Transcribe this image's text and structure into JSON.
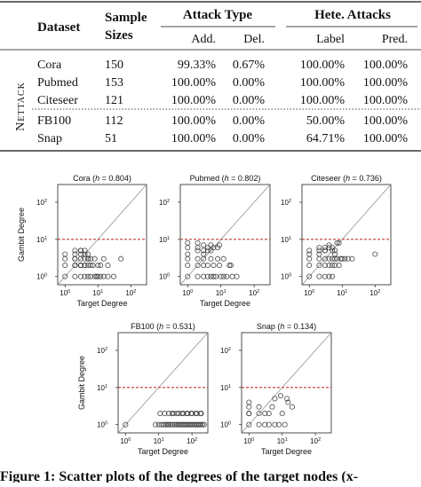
{
  "table": {
    "col_dataset": "Dataset",
    "col_sample_line1": "Sample",
    "col_sample_line2": "Sizes",
    "group_attack": "Attack Type",
    "group_hete": "Hete. Attacks",
    "sub_add": "Add.",
    "sub_del": "Del.",
    "sub_label": "Label",
    "sub_pred": "Pred.",
    "side_label": "Nettack",
    "rows": [
      {
        "dataset": "Cora",
        "size": "150",
        "add": "99.33%",
        "del": "0.67%",
        "label": "100.00%",
        "pred": "100.00%"
      },
      {
        "dataset": "Pubmed",
        "size": "153",
        "add": "100.00%",
        "del": "0.00%",
        "label": "100.00%",
        "pred": "100.00%"
      },
      {
        "dataset": "Citeseer",
        "size": "121",
        "add": "100.00%",
        "del": "0.00%",
        "label": "100.00%",
        "pred": "100.00%"
      },
      {
        "dataset": "FB100",
        "size": "112",
        "add": "100.00%",
        "del": "0.00%",
        "label": "50.00%",
        "pred": "100.00%"
      },
      {
        "dataset": "Snap",
        "size": "51",
        "add": "100.00%",
        "del": "0.00%",
        "label": "64.71%",
        "pred": "100.00%"
      }
    ]
  },
  "colors": {
    "threshold_line": "#c0392b",
    "marker": "#333333",
    "diagonal": "#888888"
  },
  "chart_data": [
    {
      "type": "scatter",
      "title": "Cora (h = 0.804)",
      "title_name": "Cora",
      "title_h": "0.804",
      "xlabel": "Target Degree",
      "ylabel": "Gambit Degree",
      "xscale": "log",
      "yscale": "log",
      "xlim": [
        0.6,
        300
      ],
      "ylim": [
        0.6,
        300
      ],
      "threshold_y": 10,
      "diagonal": true,
      "xticks": [
        "10^0",
        "10^1",
        "10^2"
      ],
      "yticks": [
        "10^0",
        "10^1",
        "10^2"
      ],
      "x": [
        1,
        1,
        1,
        1,
        2,
        2,
        2,
        2,
        2,
        3,
        3,
        3,
        3,
        3,
        4,
        4,
        4,
        4,
        5,
        5,
        5,
        6,
        6,
        7,
        8,
        9,
        10,
        12,
        15,
        20,
        30,
        50,
        2,
        3,
        4,
        5,
        6,
        8,
        10,
        12,
        15,
        20,
        3,
        4,
        5,
        2,
        3
      ],
      "y": [
        1,
        2,
        3,
        4,
        1,
        2,
        3,
        4,
        5,
        1,
        2,
        3,
        4,
        5,
        1,
        2,
        3,
        4,
        1,
        2,
        3,
        1,
        3,
        2,
        3,
        1,
        2,
        1,
        1,
        2,
        1,
        3,
        3,
        2,
        2,
        3,
        2,
        1,
        1,
        2,
        3,
        1,
        5,
        5,
        4,
        2,
        2
      ]
    },
    {
      "type": "scatter",
      "title": "Pubmed (h = 0.802)",
      "title_name": "Pubmed",
      "title_h": "0.802",
      "xlabel": "Target Degree",
      "ylabel": "",
      "xscale": "log",
      "yscale": "log",
      "xlim": [
        0.6,
        300
      ],
      "ylim": [
        0.6,
        300
      ],
      "threshold_y": 10,
      "diagonal": true,
      "xticks": [
        "10^0",
        "10^1",
        "10^2"
      ],
      "yticks": [
        "10^0",
        "10^1",
        "10^2"
      ],
      "x": [
        1,
        1,
        1,
        1,
        1,
        2,
        2,
        2,
        2,
        3,
        3,
        3,
        3,
        4,
        4,
        4,
        5,
        5,
        5,
        6,
        6,
        7,
        8,
        9,
        10,
        12,
        15,
        18,
        22,
        30,
        1,
        2,
        3,
        5,
        8,
        12,
        20,
        2,
        3,
        4,
        6,
        9
      ],
      "y": [
        1,
        2,
        3,
        4,
        6,
        1,
        2,
        3,
        5,
        1,
        2,
        3,
        4,
        1,
        2,
        6,
        1,
        3,
        5,
        1,
        2,
        1,
        3,
        2,
        1,
        1,
        1,
        2,
        1,
        1,
        8,
        8,
        7,
        7,
        6,
        3,
        2,
        6,
        5,
        5,
        6,
        7
      ]
    },
    {
      "type": "scatter",
      "title": "Citeseer (h = 0.736)",
      "title_name": "Citeseer",
      "title_h": "0.736",
      "xlabel": "",
      "ylabel": "",
      "xscale": "log",
      "yscale": "log",
      "xlim": [
        0.6,
        300
      ],
      "ylim": [
        0.6,
        300
      ],
      "threshold_y": 10,
      "diagonal": true,
      "xticks": [
        "10^0",
        "10^1",
        "10^2"
      ],
      "yticks": [
        "10^0",
        "10^1",
        "10^2"
      ],
      "x": [
        1,
        1,
        1,
        1,
        1,
        2,
        2,
        2,
        2,
        2,
        3,
        3,
        3,
        3,
        4,
        4,
        4,
        5,
        5,
        5,
        6,
        6,
        7,
        8,
        9,
        10,
        12,
        15,
        20,
        100,
        2,
        3,
        4,
        5,
        6,
        7,
        8,
        3,
        4,
        5,
        6
      ],
      "y": [
        1,
        2,
        3,
        4,
        5,
        1,
        2,
        3,
        4,
        5,
        1,
        2,
        3,
        5,
        1,
        2,
        3,
        1,
        2,
        3,
        2,
        3,
        3,
        2,
        3,
        3,
        3,
        3,
        3,
        4,
        6,
        6,
        7,
        6,
        5,
        8,
        8,
        5,
        6,
        5,
        4
      ]
    },
    {
      "type": "scatter",
      "title": "FB100 (h = 0.531)",
      "title_name": "FB100",
      "title_h": "0.531",
      "xlabel": "Target Degree",
      "ylabel": "Gambit Degree",
      "xscale": "log",
      "yscale": "log",
      "xlim": [
        0.6,
        300
      ],
      "ylim": [
        0.6,
        300
      ],
      "threshold_y": 10,
      "diagonal": true,
      "xticks": [
        "10^0",
        "10^1",
        "10^2"
      ],
      "yticks": [
        "10^0",
        "10^1",
        "10^2"
      ],
      "x": [
        1,
        8,
        10,
        12,
        14,
        16,
        18,
        20,
        23,
        26,
        30,
        34,
        38,
        43,
        48,
        54,
        60,
        67,
        75,
        84,
        94,
        105,
        118,
        132,
        148,
        165,
        185,
        207,
        232,
        11,
        15,
        20,
        28,
        40,
        55,
        75,
        100,
        140,
        190,
        25,
        35,
        50,
        70,
        95,
        130,
        180
      ],
      "y": [
        1,
        1,
        1,
        1,
        1,
        1,
        1,
        1,
        1,
        1,
        1,
        1,
        1,
        1,
        1,
        1,
        1,
        1,
        1,
        1,
        1,
        1,
        1,
        1,
        1,
        1,
        1,
        1,
        1,
        2,
        2,
        2,
        2,
        2,
        2,
        2,
        2,
        2,
        2,
        2,
        2,
        2,
        2,
        2,
        2,
        2
      ]
    },
    {
      "type": "scatter",
      "title": "Snap (h = 0.134)",
      "title_name": "Snap",
      "title_h": "0.134",
      "xlabel": "Target Degree",
      "ylabel": "",
      "xscale": "log",
      "yscale": "log",
      "xlim": [
        0.6,
        300
      ],
      "ylim": [
        0.6,
        300
      ],
      "threshold_y": 10,
      "diagonal": true,
      "xticks": [
        "10^0",
        "10^1",
        "10^2"
      ],
      "yticks": [
        "10^0",
        "10^1",
        "10^2"
      ],
      "x": [
        1,
        1,
        1,
        1,
        2,
        2,
        3,
        3,
        4,
        5,
        6,
        8,
        10,
        12,
        15,
        20,
        1,
        2,
        4,
        6,
        9,
        14
      ],
      "y": [
        1,
        2,
        3,
        4,
        1,
        2,
        1,
        2,
        1,
        3,
        1,
        1,
        2,
        1,
        4,
        3,
        2,
        3,
        2,
        5,
        6,
        5
      ]
    }
  ],
  "caption": "Figure 1: Scatter plots of the degrees of the target nodes (x-"
}
